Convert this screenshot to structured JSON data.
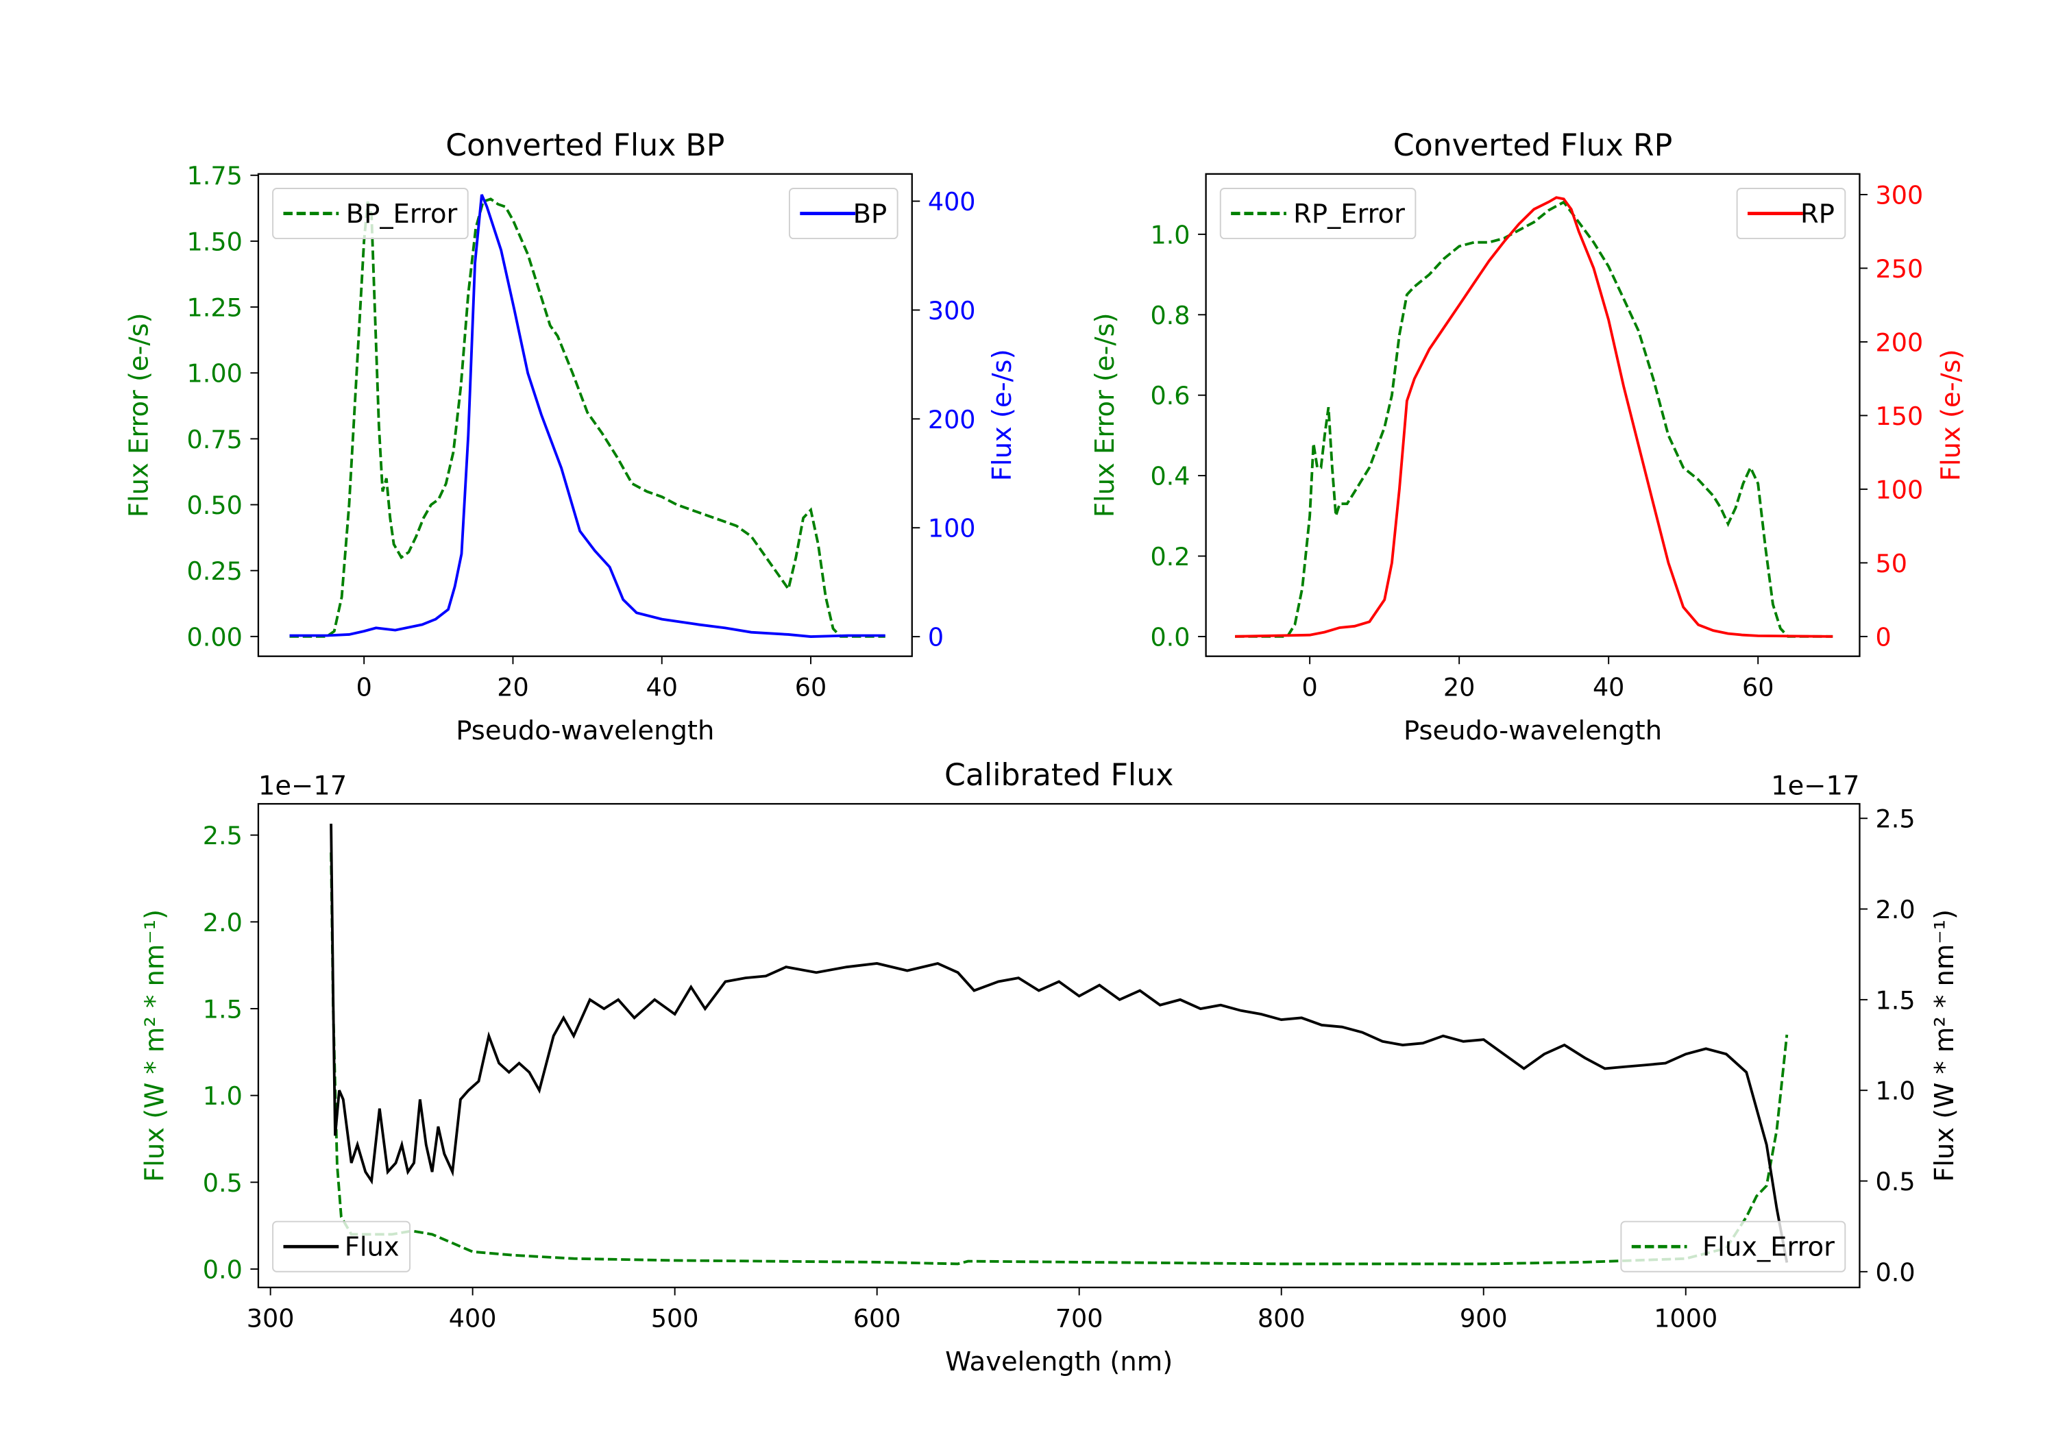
{
  "chart_data": [
    {
      "type": "line",
      "title": "Converted Flux BP",
      "xlabel": "Pseudo-wavelength",
      "ylabel_left": "Flux Error (e-/s)",
      "ylabel_right": "Flux (e-/s)",
      "left_color": "#008000",
      "right_color": "#0000ff",
      "xlim": [
        -14.2,
        73.6
      ],
      "ylim_left": [
        -0.075,
        1.755
      ],
      "ylim_right": [
        -18,
        425
      ],
      "xticks": [
        "0",
        "20",
        "40",
        "60"
      ],
      "xtick_values": [
        0,
        20,
        40,
        60
      ],
      "yticks_left": [
        "0.00",
        "0.25",
        "0.50",
        "0.75",
        "1.00",
        "1.25",
        "1.50",
        "1.75"
      ],
      "ytick_left_values": [
        0,
        0.25,
        0.5,
        0.75,
        1,
        1.25,
        1.5,
        1.75
      ],
      "yticks_right": [
        "0",
        "100",
        "200",
        "300",
        "400"
      ],
      "ytick_right_values": [
        0,
        100,
        200,
        300,
        400
      ],
      "series": [
        {
          "name": "BP_Error",
          "axis": "left",
          "color": "#008000",
          "style": "dashed",
          "x": [
            -10,
            -5,
            -4,
            -3,
            -2,
            -1,
            0,
            0.5,
            1,
            1.5,
            2,
            2.5,
            3,
            3.5,
            4,
            5,
            6,
            7,
            8,
            9,
            10,
            11,
            12,
            13,
            14,
            15,
            16,
            17,
            18,
            19,
            20,
            22,
            24,
            25,
            26,
            28,
            30,
            32,
            34,
            36,
            38,
            40,
            42,
            44,
            46,
            48,
            50,
            52,
            54,
            56,
            57,
            58,
            59,
            60,
            61,
            62,
            63,
            64,
            70
          ],
          "y": [
            0,
            0,
            0.02,
            0.15,
            0.5,
            1.0,
            1.5,
            1.65,
            1.6,
            1.2,
            0.8,
            0.55,
            0.6,
            0.45,
            0.35,
            0.3,
            0.32,
            0.38,
            0.45,
            0.5,
            0.52,
            0.58,
            0.7,
            0.95,
            1.3,
            1.55,
            1.65,
            1.66,
            1.64,
            1.63,
            1.58,
            1.45,
            1.27,
            1.18,
            1.14,
            1.0,
            0.85,
            0.77,
            0.68,
            0.58,
            0.55,
            0.53,
            0.5,
            0.48,
            0.46,
            0.44,
            0.42,
            0.38,
            0.3,
            0.22,
            0.18,
            0.3,
            0.45,
            0.48,
            0.35,
            0.15,
            0.03,
            0,
            0
          ]
        },
        {
          "name": "BP",
          "axis": "right",
          "color": "#0000ff",
          "style": "solid",
          "x": [
            -10,
            -5,
            -2,
            0,
            1.6,
            4.2,
            7.8,
            9.6,
            11.3,
            12.2,
            13.1,
            14,
            14.9,
            15.8,
            16.5,
            18.4,
            20.2,
            22,
            23.8,
            26.5,
            29,
            31,
            33,
            34.8,
            36.6,
            40,
            45,
            48.5,
            52,
            57,
            60,
            65,
            70
          ],
          "y": [
            1,
            1,
            2,
            5,
            8,
            6,
            11,
            16,
            25,
            46,
            76,
            185,
            343,
            406,
            395,
            355,
            300,
            242,
            204,
            155,
            97,
            79,
            64,
            34,
            22,
            16,
            11,
            8,
            4,
            2,
            0,
            1,
            1
          ]
        }
      ],
      "legends": [
        {
          "label": "BP_Error",
          "loc": "upper left"
        },
        {
          "label": "BP",
          "loc": "upper right"
        }
      ]
    },
    {
      "type": "line",
      "title": "Converted Flux RP",
      "xlabel": "Pseudo-wavelength",
      "ylabel_left": "Flux Error (e-/s)",
      "ylabel_right": "Flux (e-/s)",
      "left_color": "#008000",
      "right_color": "#ff0000",
      "xlim": [
        -13.9,
        73.6
      ],
      "ylim_left": [
        -0.049,
        1.15
      ],
      "ylim_right": [
        -13.4,
        314
      ],
      "xticks": [
        "0",
        "20",
        "40",
        "60"
      ],
      "xtick_values": [
        0,
        20,
        40,
        60
      ],
      "yticks_left": [
        "0.0",
        "0.2",
        "0.4",
        "0.6",
        "0.8",
        "1.0"
      ],
      "ytick_left_values": [
        0,
        0.2,
        0.4,
        0.6,
        0.8,
        1.0
      ],
      "yticks_right": [
        "0",
        "50",
        "100",
        "150",
        "200",
        "250",
        "300"
      ],
      "ytick_right_values": [
        0,
        50,
        100,
        150,
        200,
        250,
        300
      ],
      "series": [
        {
          "name": "RP_Error",
          "axis": "left",
          "color": "#008000",
          "style": "dashed",
          "x": [
            -10,
            -3,
            -2,
            -1,
            0,
            0.5,
            1,
            1.5,
            2,
            2.5,
            3,
            3.5,
            4,
            5,
            6,
            8,
            10,
            11,
            12,
            13,
            14,
            16,
            18,
            20,
            22,
            24,
            26,
            28,
            30,
            32,
            34,
            36,
            38,
            40,
            42,
            44,
            46,
            48,
            50,
            52,
            54,
            55,
            56,
            57,
            58,
            59,
            60,
            61,
            62,
            63,
            64,
            70
          ],
          "y": [
            0,
            0,
            0.03,
            0.12,
            0.3,
            0.48,
            0.42,
            0.42,
            0.5,
            0.57,
            0.42,
            0.3,
            0.33,
            0.33,
            0.36,
            0.42,
            0.52,
            0.6,
            0.75,
            0.85,
            0.87,
            0.9,
            0.94,
            0.97,
            0.98,
            0.98,
            0.99,
            1.01,
            1.03,
            1.06,
            1.08,
            1.03,
            0.98,
            0.92,
            0.84,
            0.76,
            0.64,
            0.5,
            0.42,
            0.39,
            0.35,
            0.32,
            0.28,
            0.32,
            0.38,
            0.42,
            0.38,
            0.22,
            0.08,
            0.02,
            0,
            0
          ]
        },
        {
          "name": "RP",
          "axis": "right",
          "color": "#ff0000",
          "style": "solid",
          "x": [
            -10,
            0,
            2,
            4,
            6,
            8,
            10,
            11,
            12,
            13,
            14,
            16,
            18,
            20,
            22,
            24,
            26,
            28,
            30,
            32,
            33,
            34,
            35,
            36,
            38,
            40,
            42,
            44,
            46,
            48,
            50,
            52,
            54,
            56,
            58,
            60,
            70
          ],
          "y": [
            0,
            1,
            3,
            6,
            7,
            10,
            25,
            50,
            100,
            160,
            175,
            195,
            210,
            225,
            240,
            255,
            268,
            280,
            290,
            295,
            298,
            297,
            290,
            275,
            250,
            215,
            170,
            130,
            90,
            50,
            20,
            8,
            4,
            2,
            1,
            0.5,
            0
          ]
        }
      ],
      "legends": [
        {
          "label": "RP_Error",
          "loc": "upper left"
        },
        {
          "label": "RP",
          "loc": "upper right"
        }
      ]
    },
    {
      "type": "line",
      "title": "Calibrated Flux",
      "xlabel": "Wavelength (nm)",
      "ylabel_left": "Flux (W * m² * nm⁻¹)",
      "ylabel_right": "Flux (W * m² * nm⁻¹)",
      "left_color": "#008000",
      "right_color": "#000000",
      "offset_left": "1e−17",
      "offset_right": "1e−17",
      "xlim": [
        294,
        1086
      ],
      "ylim_left": [
        -0.106,
        2.68
      ],
      "ylim_right": [
        -0.087,
        2.58
      ],
      "xticks": [
        "300",
        "400",
        "500",
        "600",
        "700",
        "800",
        "900",
        "1000"
      ],
      "xtick_values": [
        300,
        400,
        500,
        600,
        700,
        800,
        900,
        1000
      ],
      "yticks_left": [
        "0.0",
        "0.5",
        "1.0",
        "1.5",
        "2.0",
        "2.5"
      ],
      "ytick_left_values": [
        0,
        0.5,
        1,
        1.5,
        2,
        2.5
      ],
      "yticks_right": [
        "0.0",
        "0.5",
        "1.0",
        "1.5",
        "2.0",
        "2.5"
      ],
      "ytick_right_values": [
        0,
        0.5,
        1,
        1.5,
        2,
        2.5
      ],
      "series": [
        {
          "name": "Flux_Error",
          "axis": "left",
          "color": "#008000",
          "style": "dashed",
          "x": [
            330,
            331,
            333,
            335,
            340,
            350,
            360,
            370,
            380,
            390,
            400,
            420,
            450,
            500,
            600,
            640,
            645,
            700,
            800,
            900,
            950,
            1000,
            1020,
            1030,
            1035,
            1040,
            1045,
            1050
          ],
          "y": [
            2.4,
            1.5,
            0.6,
            0.3,
            0.2,
            0.2,
            0.2,
            0.22,
            0.2,
            0.15,
            0.1,
            0.08,
            0.06,
            0.05,
            0.04,
            0.03,
            0.045,
            0.04,
            0.03,
            0.03,
            0.04,
            0.06,
            0.12,
            0.3,
            0.42,
            0.48,
            0.8,
            1.35
          ]
        },
        {
          "name": "Flux",
          "axis": "right",
          "color": "#000000",
          "style": "solid",
          "x": [
            330,
            331,
            332,
            334,
            336,
            340,
            343,
            347,
            350,
            354,
            358,
            362,
            365,
            368,
            371,
            374,
            377,
            380,
            383,
            386,
            390,
            394,
            398,
            403,
            408,
            413,
            418,
            423,
            428,
            433,
            440,
            445,
            450,
            458,
            465,
            472,
            480,
            490,
            500,
            508,
            515,
            525,
            535,
            545,
            555,
            570,
            585,
            600,
            615,
            630,
            640,
            648,
            660,
            670,
            680,
            690,
            700,
            710,
            720,
            730,
            740,
            750,
            760,
            770,
            780,
            790,
            800,
            810,
            820,
            830,
            840,
            850,
            860,
            870,
            880,
            890,
            900,
            910,
            920,
            930,
            940,
            950,
            960,
            970,
            980,
            990,
            1000,
            1010,
            1020,
            1030,
            1040,
            1045,
            1050
          ],
          "y": [
            2.47,
            1.5,
            0.75,
            1.0,
            0.95,
            0.6,
            0.7,
            0.55,
            0.5,
            0.9,
            0.55,
            0.6,
            0.7,
            0.55,
            0.6,
            0.95,
            0.7,
            0.55,
            0.8,
            0.65,
            0.55,
            0.95,
            1.0,
            1.05,
            1.3,
            1.15,
            1.1,
            1.15,
            1.1,
            1.0,
            1.3,
            1.4,
            1.3,
            1.5,
            1.45,
            1.5,
            1.4,
            1.5,
            1.42,
            1.57,
            1.45,
            1.6,
            1.62,
            1.63,
            1.68,
            1.65,
            1.68,
            1.7,
            1.66,
            1.7,
            1.65,
            1.55,
            1.6,
            1.62,
            1.55,
            1.6,
            1.52,
            1.58,
            1.5,
            1.55,
            1.47,
            1.5,
            1.45,
            1.47,
            1.44,
            1.42,
            1.39,
            1.4,
            1.36,
            1.35,
            1.32,
            1.27,
            1.25,
            1.26,
            1.3,
            1.27,
            1.28,
            1.2,
            1.12,
            1.2,
            1.25,
            1.18,
            1.12,
            1.13,
            1.14,
            1.15,
            1.2,
            1.23,
            1.2,
            1.1,
            0.7,
            0.35,
            0.05
          ]
        }
      ],
      "legends": [
        {
          "label": "Flux",
          "loc": "lower left"
        },
        {
          "label": "Flux_Error",
          "loc": "lower right"
        }
      ]
    }
  ]
}
